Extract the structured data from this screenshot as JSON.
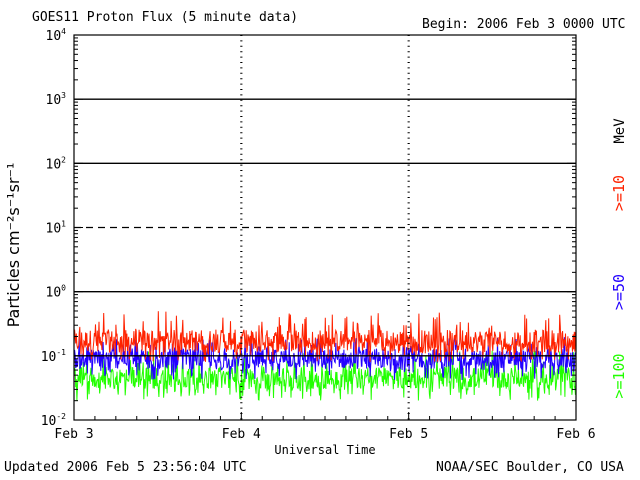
{
  "header": {
    "title": "GOES11 Proton Flux (5 minute data)",
    "begin": "Begin: 2006 Feb 3 0000 UTC"
  },
  "footer": {
    "updated": "Updated 2006 Feb  5 23:56:04 UTC",
    "credit": "NOAA/SEC Boulder, CO USA"
  },
  "colors": {
    "ge10": "#ff2200",
    "ge50": "#2200ff",
    "ge100": "#22ff00",
    "background": "#ffffff",
    "axes": "#000000"
  },
  "chart_data": {
    "type": "line",
    "title": "GOES11 Proton Flux (5 minute data)",
    "xlabel": "Universal Time",
    "ylabel": "Particles cm⁻²s⁻¹sr⁻¹",
    "units_label": "MeV",
    "yscale": "log",
    "ylim": [
      0.01,
      10000
    ],
    "xlim": [
      "2006-02-03 00:00",
      "2006-02-06 00:00"
    ],
    "x_ticks": [
      "Feb 3",
      "Feb 4",
      "Feb 5",
      "Feb 6"
    ],
    "y_ticks": [
      {
        "base": "10",
        "exp": "-2"
      },
      {
        "base": "10",
        "exp": "-1"
      },
      {
        "base": "10",
        "exp": "0"
      },
      {
        "base": "10",
        "exp": "1"
      },
      {
        "base": "10",
        "exp": "2"
      },
      {
        "base": "10",
        "exp": "3"
      },
      {
        "base": "10",
        "exp": "4"
      }
    ],
    "threshold_lines": [
      {
        "value": 10,
        "style": "dashed"
      }
    ],
    "grid": true,
    "legend_position": "right",
    "series": [
      {
        "name": ">=10",
        "color": "#ff2200",
        "typical": 0.17,
        "min": 0.08,
        "max": 0.5
      },
      {
        "name": ">=50",
        "color": "#2200ff",
        "typical": 0.09,
        "min": 0.04,
        "max": 0.2
      },
      {
        "name": ">=100",
        "color": "#22ff00",
        "typical": 0.045,
        "min": 0.02,
        "max": 0.12
      }
    ]
  }
}
